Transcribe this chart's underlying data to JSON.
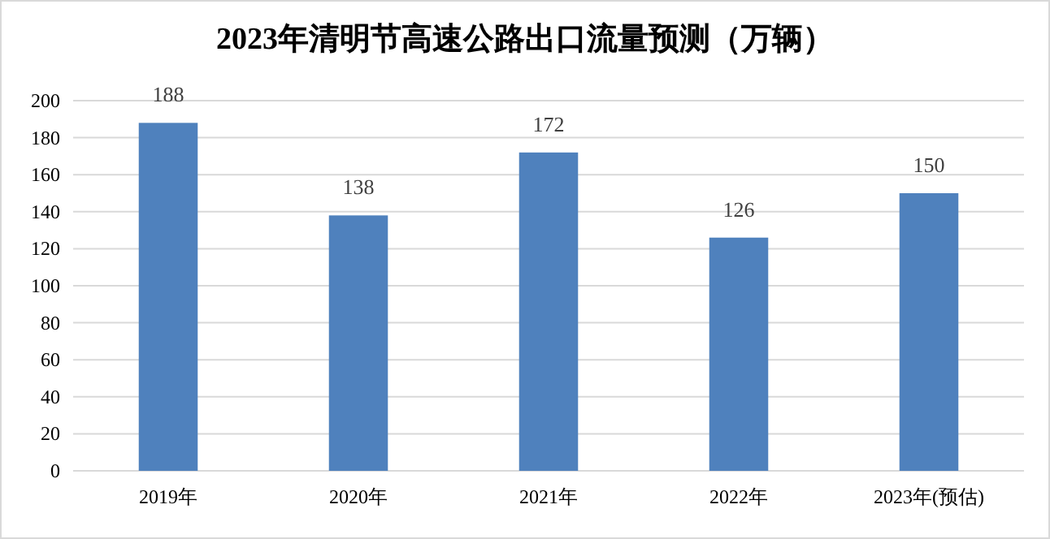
{
  "chart_data": {
    "type": "bar",
    "title": "2023年清明节高速公路出口流量预测（万辆）",
    "categories": [
      "2019年",
      "2020年",
      "2021年",
      "2022年",
      "2023年(预估)"
    ],
    "values": [
      188,
      138,
      172,
      126,
      150
    ],
    "color": "#4f81bd",
    "ylim": [
      0,
      200
    ],
    "yticks": [
      0,
      20,
      40,
      60,
      80,
      100,
      120,
      140,
      160,
      180,
      200
    ],
    "grid": "y",
    "data_labels": true
  }
}
